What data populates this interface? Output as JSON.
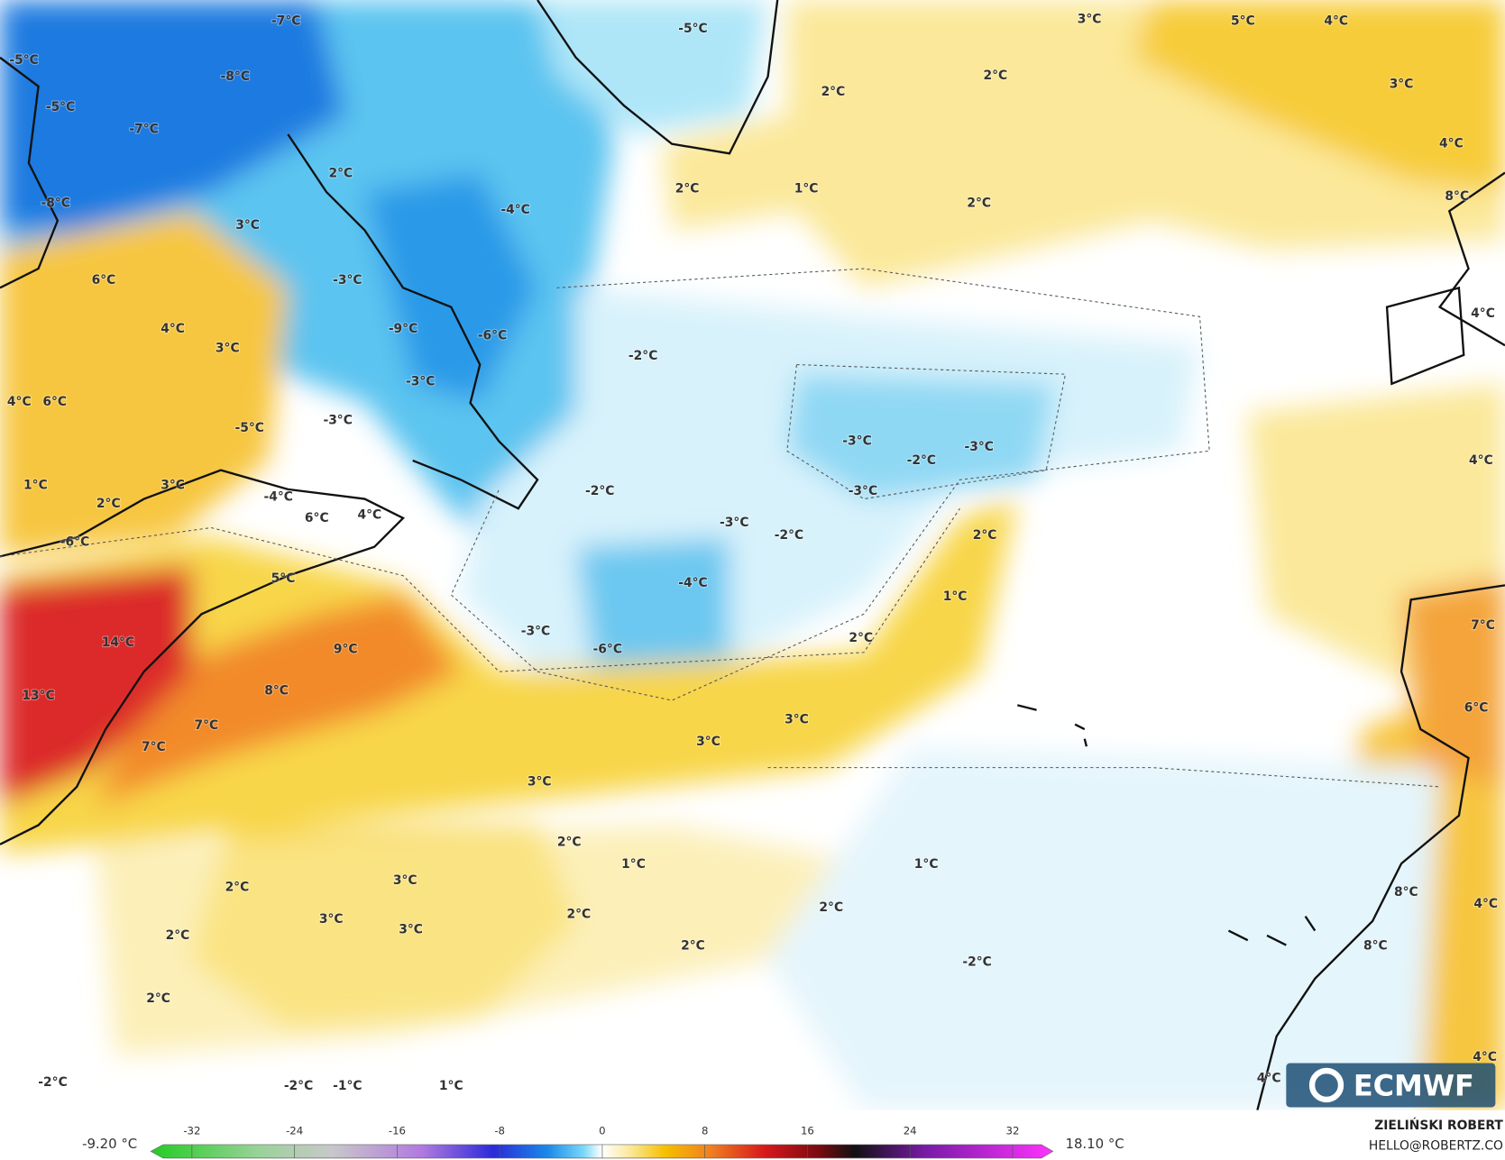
{
  "map_labels": [
    "-7°C",
    "-5°C",
    "3°C",
    "5°C",
    "4°C",
    "-5°C",
    "-8°C",
    "2°C",
    "2°C",
    "3°C",
    "-5°C",
    "-7°C",
    "4°C",
    "2°C",
    "2°C",
    "1°C",
    "2°C",
    "-8°C",
    "-4°C",
    "3°C",
    "8°C",
    "6°C",
    "-3°C",
    "4°C",
    "-9°C",
    "-6°C",
    "3°C",
    "-2°C",
    "-3°C",
    "4°C",
    "6°C",
    "4°C",
    "-3°C",
    "-5°C",
    "-3°C",
    "-2°C",
    "-3°C",
    "4°C",
    "1°C",
    "3°C",
    "-2°C",
    "-3°C",
    "2°C",
    "-4°C",
    "6°C",
    "4°C",
    "-3°C",
    "-2°C",
    "2°C",
    "-6°C",
    "5°C",
    "-4°C",
    "1°C",
    "7°C",
    "-3°C",
    "2°C",
    "14°C",
    "9°C",
    "-6°C",
    "8°C",
    "13°C",
    "6°C",
    "7°C",
    "3°C",
    "3°C",
    "7°C",
    "3°C",
    "2°C",
    "1°C",
    "1°C",
    "2°C",
    "3°C",
    "8°C",
    "4°C",
    "2°C",
    "2°C",
    "3°C",
    "3°C",
    "2°C",
    "2°C",
    "8°C",
    "-2°C",
    "2°C",
    "4°C",
    "4°C",
    "-2°C",
    "-2°C",
    "-1°C",
    "1°C"
  ],
  "colorbar": {
    "ticks": [
      -32,
      -24,
      -16,
      -8,
      0,
      8,
      16,
      24,
      32
    ],
    "min_label": "-9.20 °C",
    "max_label": "18.10 °C"
  },
  "logo": "ECMWF",
  "author": "ZIELIŃSKI ROBERT",
  "contact": "HELLO@ROBERTZ.CO"
}
